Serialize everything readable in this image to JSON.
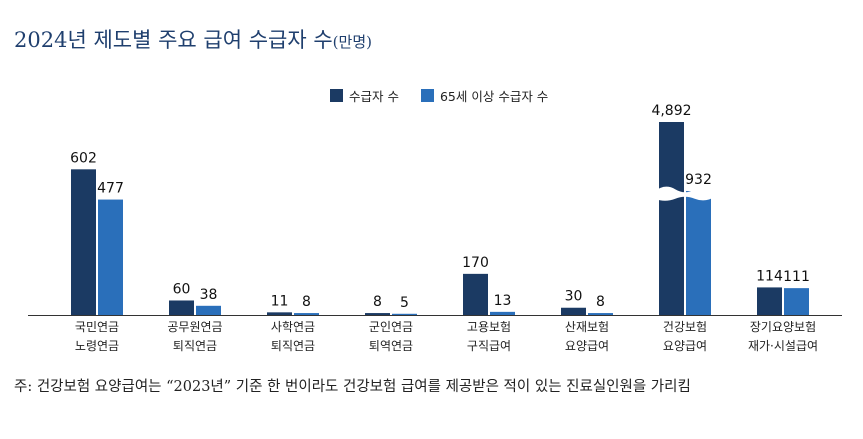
{
  "title": {
    "main": "2024년 제도별 주요 급여 수급자 수",
    "unit": "(만명)"
  },
  "legend": [
    {
      "label": "수급자 수",
      "color": "#1b3a63"
    },
    {
      "label": "65세 이상 수급자 수",
      "color": "#2a6fba"
    }
  ],
  "note": "주: 건강보험 요양급여는 “2023년” 기준 한 번이라도 건강보험 급여를 제공받은 적이 있는 진료실인원을 가리킴",
  "chart_data": {
    "type": "bar",
    "categories": [
      [
        "국민연금",
        "노령연금"
      ],
      [
        "공무원연금",
        "퇴직연금"
      ],
      [
        "사학연금",
        "퇴직연금"
      ],
      [
        "군인연금",
        "퇴역연금"
      ],
      [
        "고용보험",
        "구직급여"
      ],
      [
        "산재보험",
        "요양급여"
      ],
      [
        "건강보험",
        "요양급여"
      ],
      [
        "장기요양보험",
        "재가·시설급여"
      ]
    ],
    "series": [
      {
        "name": "수급자 수",
        "color": "#1b3a63",
        "values": [
          602,
          60,
          11,
          8,
          170,
          30,
          4892,
          114
        ],
        "labels": [
          "602",
          "60",
          "11",
          "8",
          "170",
          "30",
          "4,892",
          "114"
        ]
      },
      {
        "name": "65세 이상 수급자 수",
        "color": "#2a6fba",
        "values": [
          477,
          38,
          8,
          5,
          13,
          8,
          932,
          111
        ],
        "labels": [
          "477",
          "38",
          "8",
          "5",
          "13",
          "8",
          "932",
          "111"
        ]
      }
    ],
    "axis_break": {
      "category_index": 6
    },
    "gridlines": false,
    "legend_position": "top-center"
  }
}
